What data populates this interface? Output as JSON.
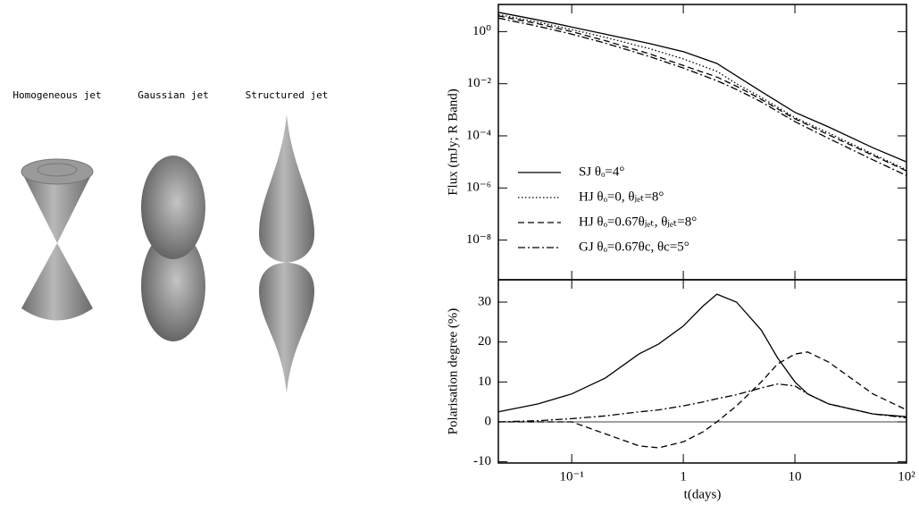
{
  "panels": {
    "labels": [
      "Homogeneous jet",
      "Gaussian jet",
      "Structured jet"
    ]
  },
  "chart_data": [
    {
      "type": "line",
      "ylabel": "Flux (mJy; R Band)",
      "xlog": true,
      "ylog": true,
      "xlim": [
        0.022,
        100
      ],
      "ylim": [
        3e-10,
        11
      ],
      "yticks": [
        {
          "value": 1,
          "label": "10⁰"
        },
        {
          "value": 0.01,
          "label": "10⁻²"
        },
        {
          "value": 0.0001,
          "label": "10⁻⁴"
        },
        {
          "value": 1e-06,
          "label": "10⁻⁶"
        },
        {
          "value": 1e-08,
          "label": "10⁻⁸"
        }
      ],
      "legend": "lower-left",
      "x": [
        0.022,
        0.05,
        0.1,
        0.2,
        0.5,
        1,
        2,
        3,
        5,
        10,
        20,
        50,
        100
      ],
      "series": [
        {
          "name": "SJ θₒ=4°",
          "color": "#000000",
          "dash": "solid",
          "values": [
            5.5,
            2.8,
            1.5,
            0.8,
            0.35,
            0.17,
            0.06,
            0.02,
            0.005,
            0.0008,
            0.00022,
            3.5e-05,
            1e-05
          ]
        },
        {
          "name": "HJ θₒ=0, θⱼₑₜ=8°",
          "color": "#000000",
          "dash": "dotted",
          "values": [
            4.5,
            2.3,
            1.2,
            0.6,
            0.22,
            0.09,
            0.03,
            0.01,
            0.003,
            0.0005,
            0.00013,
            2e-05,
            5e-06
          ]
        },
        {
          "name": "HJ θₒ=0.67θⱼₑₜ, θⱼₑₜ=8°",
          "color": "#000000",
          "dash": "dashed",
          "values": [
            4,
            2,
            1,
            0.45,
            0.14,
            0.05,
            0.018,
            0.008,
            0.0025,
            0.00045,
            0.00011,
            1.8e-05,
            4.5e-06
          ]
        },
        {
          "name": "GJ θₒ=0.67θc, θc=5°",
          "color": "#000000",
          "dash": "dashdot",
          "values": [
            3.3,
            1.6,
            0.8,
            0.36,
            0.11,
            0.04,
            0.013,
            0.006,
            0.002,
            0.00035,
            8e-05,
            1.2e-05,
            3e-06
          ]
        }
      ]
    },
    {
      "type": "line",
      "ylabel": "Polarisation degree (%)",
      "xlabel": "t(days)",
      "xlog": true,
      "ylog": false,
      "xlim": [
        0.022,
        100
      ],
      "ylim": [
        -10.3,
        35.6
      ],
      "xticks": [
        {
          "value": 0.1,
          "label": "10⁻¹"
        },
        1,
        10,
        {
          "value": 100,
          "label": "10²"
        }
      ],
      "yticks": [
        -10,
        0,
        10,
        20,
        30
      ],
      "hline": 0,
      "x": [
        0.022,
        0.05,
        0.1,
        0.2,
        0.4,
        0.6,
        1,
        1.5,
        2,
        3,
        5,
        7,
        10,
        13,
        20,
        50,
        100
      ],
      "series": [
        {
          "color": "#000000",
          "dash": "solid",
          "values": [
            2.5,
            4.5,
            7,
            11,
            17,
            19.5,
            24,
            29,
            32,
            30,
            23,
            16,
            10,
            7,
            4.5,
            2,
            1.3
          ]
        },
        {
          "color": "#000000",
          "dash": "dashed",
          "values": [
            0,
            0,
            0,
            -3,
            -6,
            -6.5,
            -5,
            -2.5,
            0,
            4,
            10,
            14.5,
            17,
            17.5,
            15,
            7,
            3
          ]
        },
        {
          "color": "#000000",
          "dash": "dashdot",
          "values": [
            0,
            0.3,
            0.8,
            1.5,
            2.5,
            3,
            4,
            5,
            5.8,
            6.8,
            8.5,
            9.5,
            9,
            7,
            4.5,
            2,
            1
          ]
        }
      ]
    }
  ]
}
